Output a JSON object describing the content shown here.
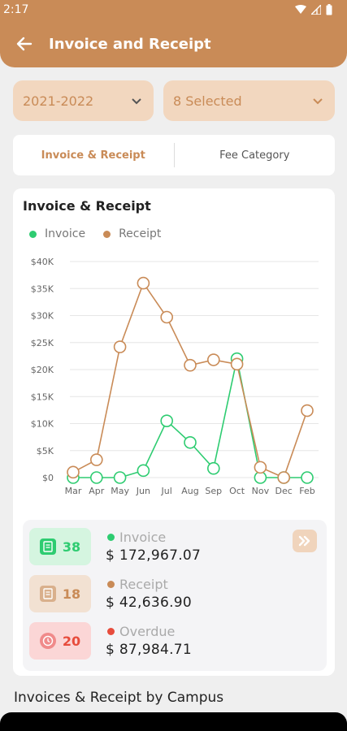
{
  "status": {
    "time": "2:17"
  },
  "appbar": {
    "title": "Invoice and Receipt"
  },
  "filters": {
    "year": "2021-2022",
    "campus": "8 Selected"
  },
  "tabs": [
    {
      "label": "Invoice & Receipt",
      "active": true
    },
    {
      "label": "Fee Category",
      "active": false
    }
  ],
  "card": {
    "title": "Invoice & Receipt",
    "legend": {
      "invoice": "Invoice",
      "receipt": "Receipt"
    }
  },
  "colors": {
    "brand": "#C98B57",
    "invoice": "#2ECC71",
    "receipt": "#C98B57",
    "overdue": "#E74C3C"
  },
  "chart_data": {
    "type": "line",
    "categories": [
      "Mar",
      "Apr",
      "May",
      "Jun",
      "Jul",
      "Aug",
      "Sep",
      "Oct",
      "Nov",
      "Dec",
      "Feb"
    ],
    "yticks": [
      "$0",
      "$5K",
      "$10K",
      "$15K",
      "$20K",
      "$25K",
      "$30K",
      "$35K",
      "$40K"
    ],
    "ylim": [
      0,
      40000
    ],
    "grid": true,
    "legend": "top-left",
    "series": [
      {
        "name": "Invoice",
        "color": "#2ECC71",
        "values": [
          0,
          0,
          0,
          1300,
          10500,
          6500,
          1700,
          22000,
          0,
          0,
          0
        ]
      },
      {
        "name": "Receipt",
        "color": "#C98B57",
        "values": [
          1000,
          3300,
          24200,
          36000,
          29700,
          20800,
          21800,
          21000,
          1900,
          0,
          12400
        ]
      }
    ]
  },
  "summary": {
    "invoice": {
      "count": "38",
      "label": "Invoice",
      "amount": "$ 172,967.07"
    },
    "receipt": {
      "count": "18",
      "label": "Receipt",
      "amount": "$ 42,636.90"
    },
    "overdue": {
      "count": "20",
      "label": "Overdue",
      "amount": "$ 87,984.71"
    }
  },
  "section": {
    "title": "Invoices & Receipt by Campus"
  }
}
